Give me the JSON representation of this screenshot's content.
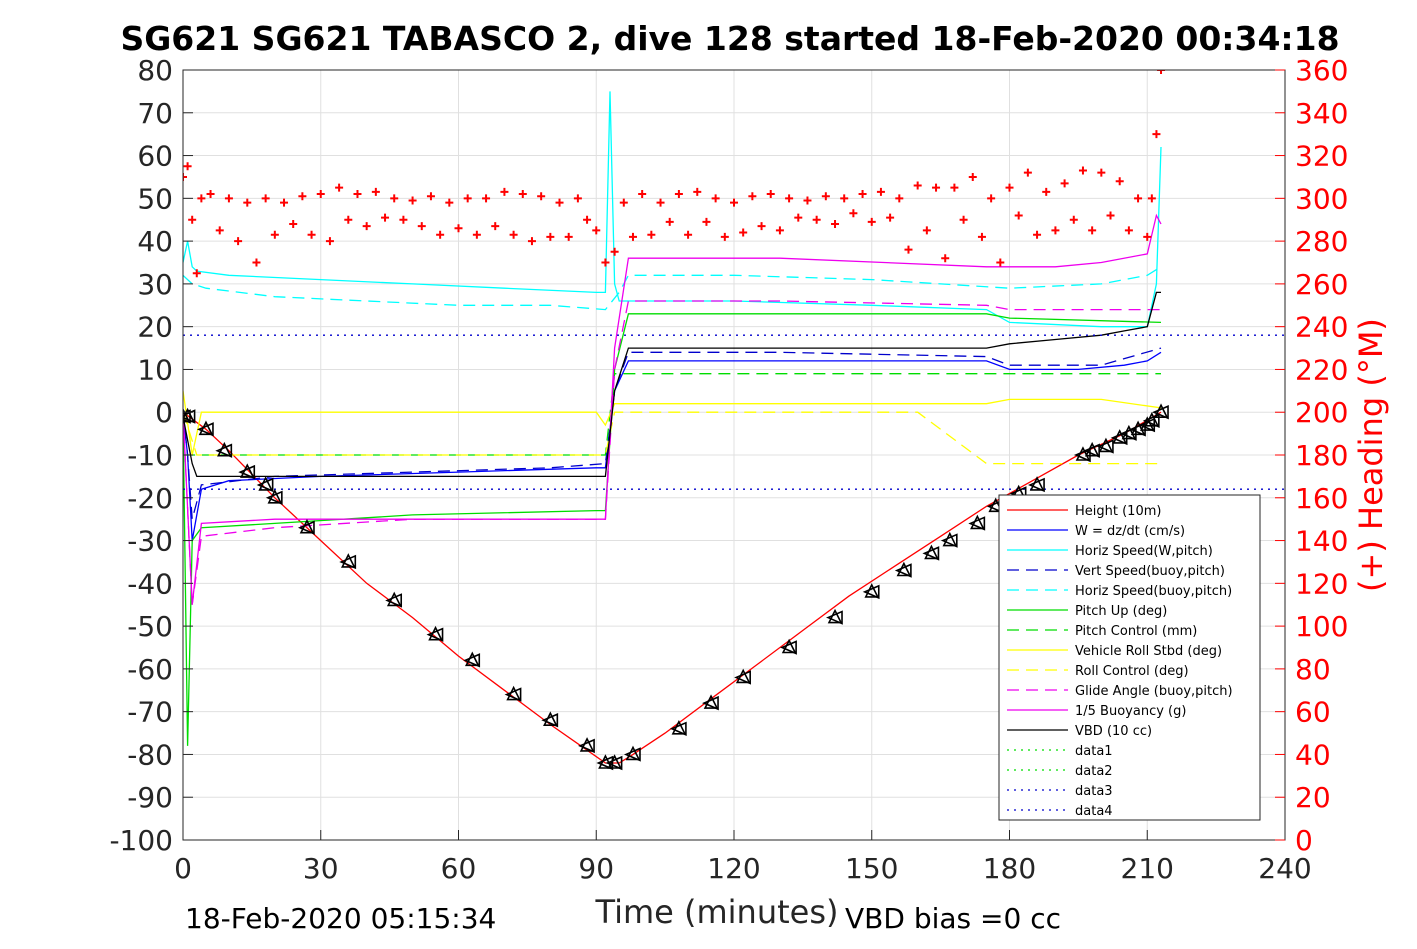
{
  "chart_data": {
    "type": "line",
    "title": "SG621 SG621 TABASCO 2, dive 128 started 18-Feb-2020 00:34:18",
    "xlabel": "Time (minutes)",
    "ylabel": "",
    "y2label": "(+) Heading (°M)",
    "xlim": [
      0,
      240
    ],
    "ylim": [
      -100,
      80
    ],
    "y2lim": [
      0,
      360
    ],
    "x_ticks": [
      0,
      30,
      60,
      90,
      120,
      150,
      180,
      210,
      240
    ],
    "y_ticks": [
      -100,
      -90,
      -80,
      -70,
      -60,
      -50,
      -40,
      -30,
      -20,
      -10,
      0,
      10,
      20,
      30,
      40,
      50,
      60,
      70,
      80
    ],
    "y2_ticks": [
      0,
      20,
      40,
      60,
      80,
      100,
      120,
      140,
      160,
      180,
      200,
      220,
      240,
      260,
      280,
      300,
      320,
      340,
      360
    ],
    "grid": true,
    "legend_position": "lower-right",
    "footer_left": "18-Feb-2020 05:15:34",
    "footer_right": "VBD bias =0 cc",
    "colors": {
      "red": "#ff0000",
      "blue": "#0000ff",
      "cyan": "#00ffff",
      "navy": "#0000cc",
      "green": "#00dd00",
      "yellow": "#ffff00",
      "magenta": "#ee00ee",
      "black": "#000000"
    },
    "series": [
      {
        "name": "Height (10m)",
        "color": "#ff0000",
        "style": "solid",
        "x": [
          0,
          5,
          10,
          20,
          30,
          40,
          50,
          60,
          70,
          80,
          88,
          92,
          95,
          98,
          105,
          115,
          125,
          135,
          145,
          155,
          165,
          175,
          185,
          195,
          205,
          213
        ],
        "y": [
          0,
          -4,
          -9,
          -20,
          -30,
          -40,
          -48,
          -57,
          -65,
          -73,
          -79,
          -82,
          -82,
          -80,
          -75,
          -67,
          -59,
          -51,
          -43,
          -36,
          -29,
          -22,
          -16,
          -10,
          -5,
          0
        ]
      },
      {
        "name": "W = dz/dt (cm/s)",
        "color": "#0000ff",
        "style": "solid",
        "x": [
          0,
          1,
          2,
          4,
          10,
          30,
          60,
          90,
          92,
          94,
          97,
          100,
          130,
          160,
          175,
          180,
          195,
          205,
          210,
          213
        ],
        "y": [
          0,
          -10,
          -30,
          -18,
          -16,
          -15,
          -14,
          -13,
          -13,
          5,
          12,
          12,
          12,
          12,
          12,
          10,
          10,
          11,
          12,
          14
        ]
      },
      {
        "name": "Horiz Speed(W,pitch)",
        "color": "#00ffff",
        "style": "solid",
        "x": [
          0,
          1,
          2,
          3,
          10,
          30,
          50,
          70,
          90,
          92,
          93,
          94,
          95,
          97,
          120,
          150,
          175,
          180,
          200,
          210,
          212,
          213
        ],
        "y": [
          35,
          40,
          34,
          33,
          32,
          31,
          30,
          29,
          28,
          28,
          75,
          30,
          26,
          26,
          26,
          25,
          24,
          21,
          20,
          20,
          30,
          62
        ]
      },
      {
        "name": "Vert Speed(buoy,pitch)",
        "color": "#0000cc",
        "style": "dash",
        "x": [
          0,
          1,
          2,
          4,
          20,
          50,
          80,
          92,
          94,
          97,
          130,
          175,
          180,
          200,
          213
        ],
        "y": [
          0,
          -10,
          -25,
          -17,
          -15,
          -14,
          -13,
          -12,
          5,
          14,
          14,
          13,
          11,
          11,
          15
        ]
      },
      {
        "name": "Horiz Speed(buoy,pitch)",
        "color": "#00ffff",
        "style": "dash",
        "x": [
          0,
          2,
          5,
          20,
          40,
          60,
          80,
          92,
          95,
          97,
          120,
          150,
          180,
          200,
          210,
          213
        ],
        "y": [
          32,
          30,
          29,
          27,
          26,
          25,
          25,
          24,
          28,
          32,
          32,
          31,
          29,
          30,
          32,
          34
        ]
      },
      {
        "name": "Pitch Up (deg)",
        "color": "#00dd00",
        "style": "solid",
        "x": [
          0,
          1,
          2,
          4,
          20,
          50,
          90,
          92,
          94,
          97,
          130,
          175,
          180,
          213
        ],
        "y": [
          0,
          -78,
          -30,
          -27,
          -26,
          -24,
          -23,
          -23,
          10,
          23,
          23,
          23,
          22,
          21
        ]
      },
      {
        "name": "Pitch Control (mm)",
        "color": "#00dd00",
        "style": "dash",
        "x": [
          0,
          3,
          92,
          94,
          97,
          213
        ],
        "y": [
          -10,
          -10,
          -10,
          9,
          9,
          9
        ]
      },
      {
        "name": "Vehicle Roll Stbd (deg)",
        "color": "#ffff00",
        "style": "solid",
        "x": [
          0,
          2,
          4,
          10,
          30,
          60,
          90,
          92,
          94,
          97,
          130,
          175,
          180,
          200,
          213
        ],
        "y": [
          5,
          -10,
          0,
          0,
          0,
          0,
          0,
          -3,
          2,
          2,
          2,
          2,
          3,
          3,
          1
        ]
      },
      {
        "name": "Roll Control (deg)",
        "color": "#ffff00",
        "style": "dash",
        "x": [
          0,
          3,
          92,
          94,
          97,
          160,
          175,
          213
        ],
        "y": [
          0,
          -10,
          -10,
          0,
          0,
          0,
          -12,
          -12
        ]
      },
      {
        "name": "Glide Angle (buoy,pitch)",
        "color": "#ee00ee",
        "style": "dash",
        "x": [
          0,
          2,
          4,
          20,
          50,
          90,
          92,
          94,
          97,
          130,
          175,
          180,
          213
        ],
        "y": [
          0,
          -45,
          -29,
          -27,
          -25,
          -25,
          -25,
          10,
          26,
          26,
          25,
          24,
          24
        ]
      },
      {
        "name": "1/5 Buoyancy (g)",
        "color": "#ee00ee",
        "style": "solid",
        "x": [
          0,
          2,
          4,
          20,
          60,
          92,
          94,
          97,
          130,
          175,
          190,
          200,
          210,
          212,
          213
        ],
        "y": [
          0,
          -45,
          -26,
          -25,
          -25,
          -25,
          15,
          36,
          36,
          34,
          34,
          35,
          37,
          46,
          44
        ]
      },
      {
        "name": "VBD (10 cc)",
        "color": "#000000",
        "style": "solid",
        "x": [
          0,
          2,
          3,
          92,
          94,
          97,
          175,
          180,
          190,
          200,
          205,
          210,
          212,
          213
        ],
        "y": [
          -1,
          -12,
          -15,
          -15,
          5,
          15,
          15,
          16,
          17,
          18,
          19,
          20,
          28,
          28
        ]
      },
      {
        "name": "data1",
        "color": "#00dd00",
        "style": "dot",
        "x": [],
        "y": []
      },
      {
        "name": "data2",
        "color": "#00dd00",
        "style": "dot",
        "x": [],
        "y": []
      },
      {
        "name": "data3",
        "color": "#0000cc",
        "style": "dot",
        "x": [
          0,
          240
        ],
        "y": [
          -18,
          -18
        ]
      },
      {
        "name": "data4",
        "color": "#0000cc",
        "style": "dot",
        "x": [
          0,
          240
        ],
        "y": [
          18,
          18
        ]
      }
    ],
    "heading": {
      "axis": "right",
      "color": "#ff0000",
      "marker": "+",
      "x": [
        0,
        1,
        2,
        3,
        4,
        6,
        8,
        10,
        12,
        14,
        16,
        18,
        20,
        22,
        24,
        26,
        28,
        30,
        32,
        34,
        36,
        38,
        40,
        42,
        44,
        46,
        48,
        50,
        52,
        54,
        56,
        58,
        60,
        62,
        64,
        66,
        68,
        70,
        72,
        74,
        76,
        78,
        80,
        82,
        84,
        86,
        88,
        90,
        92,
        94,
        96,
        98,
        100,
        102,
        104,
        106,
        108,
        110,
        112,
        114,
        116,
        118,
        120,
        122,
        124,
        126,
        128,
        130,
        132,
        134,
        136,
        138,
        140,
        142,
        144,
        146,
        148,
        150,
        152,
        154,
        156,
        158,
        160,
        162,
        164,
        166,
        168,
        170,
        172,
        174,
        176,
        178,
        180,
        182,
        184,
        186,
        188,
        190,
        192,
        194,
        196,
        198,
        200,
        202,
        204,
        206,
        208,
        210,
        211,
        212,
        213
      ],
      "y": [
        310,
        315,
        290,
        265,
        300,
        302,
        285,
        300,
        280,
        298,
        270,
        300,
        283,
        298,
        288,
        301,
        283,
        302,
        280,
        305,
        290,
        302,
        287,
        303,
        291,
        300,
        290,
        299,
        287,
        301,
        283,
        298,
        286,
        300,
        283,
        300,
        287,
        303,
        283,
        302,
        280,
        301,
        282,
        298,
        282,
        300,
        290,
        285,
        270,
        275,
        298,
        282,
        302,
        283,
        298,
        289,
        302,
        283,
        303,
        289,
        300,
        282,
        298,
        284,
        301,
        287,
        302,
        285,
        300,
        291,
        299,
        290,
        301,
        288,
        300,
        293,
        302,
        289,
        303,
        291,
        300,
        276,
        306,
        285,
        305,
        272,
        305,
        290,
        310,
        282,
        300,
        270,
        305,
        292,
        312,
        283,
        303,
        285,
        307,
        290,
        313,
        285,
        312,
        292,
        308,
        285,
        300,
        282,
        300,
        330,
        360
      ]
    },
    "dive_markers": {
      "x": [
        0,
        1,
        5,
        9,
        14,
        18,
        20,
        27,
        36,
        46,
        55,
        63,
        72,
        80,
        88,
        92,
        94,
        98,
        108,
        115,
        122,
        132,
        142,
        150,
        157,
        163,
        167,
        173,
        177,
        182,
        186,
        196,
        198,
        201,
        204,
        206,
        208,
        210,
        211,
        213
      ],
      "y": [
        -1,
        -1,
        -4,
        -9,
        -14,
        -17,
        -20,
        -27,
        -35,
        -44,
        -52,
        -58,
        -66,
        -72,
        -78,
        -82,
        -82,
        -80,
        -74,
        -68,
        -62,
        -55,
        -48,
        -42,
        -37,
        -33,
        -30,
        -26,
        -22,
        -19,
        -17,
        -10,
        -9,
        -8,
        -6,
        -5,
        -4,
        -3,
        -2,
        0
      ]
    }
  }
}
